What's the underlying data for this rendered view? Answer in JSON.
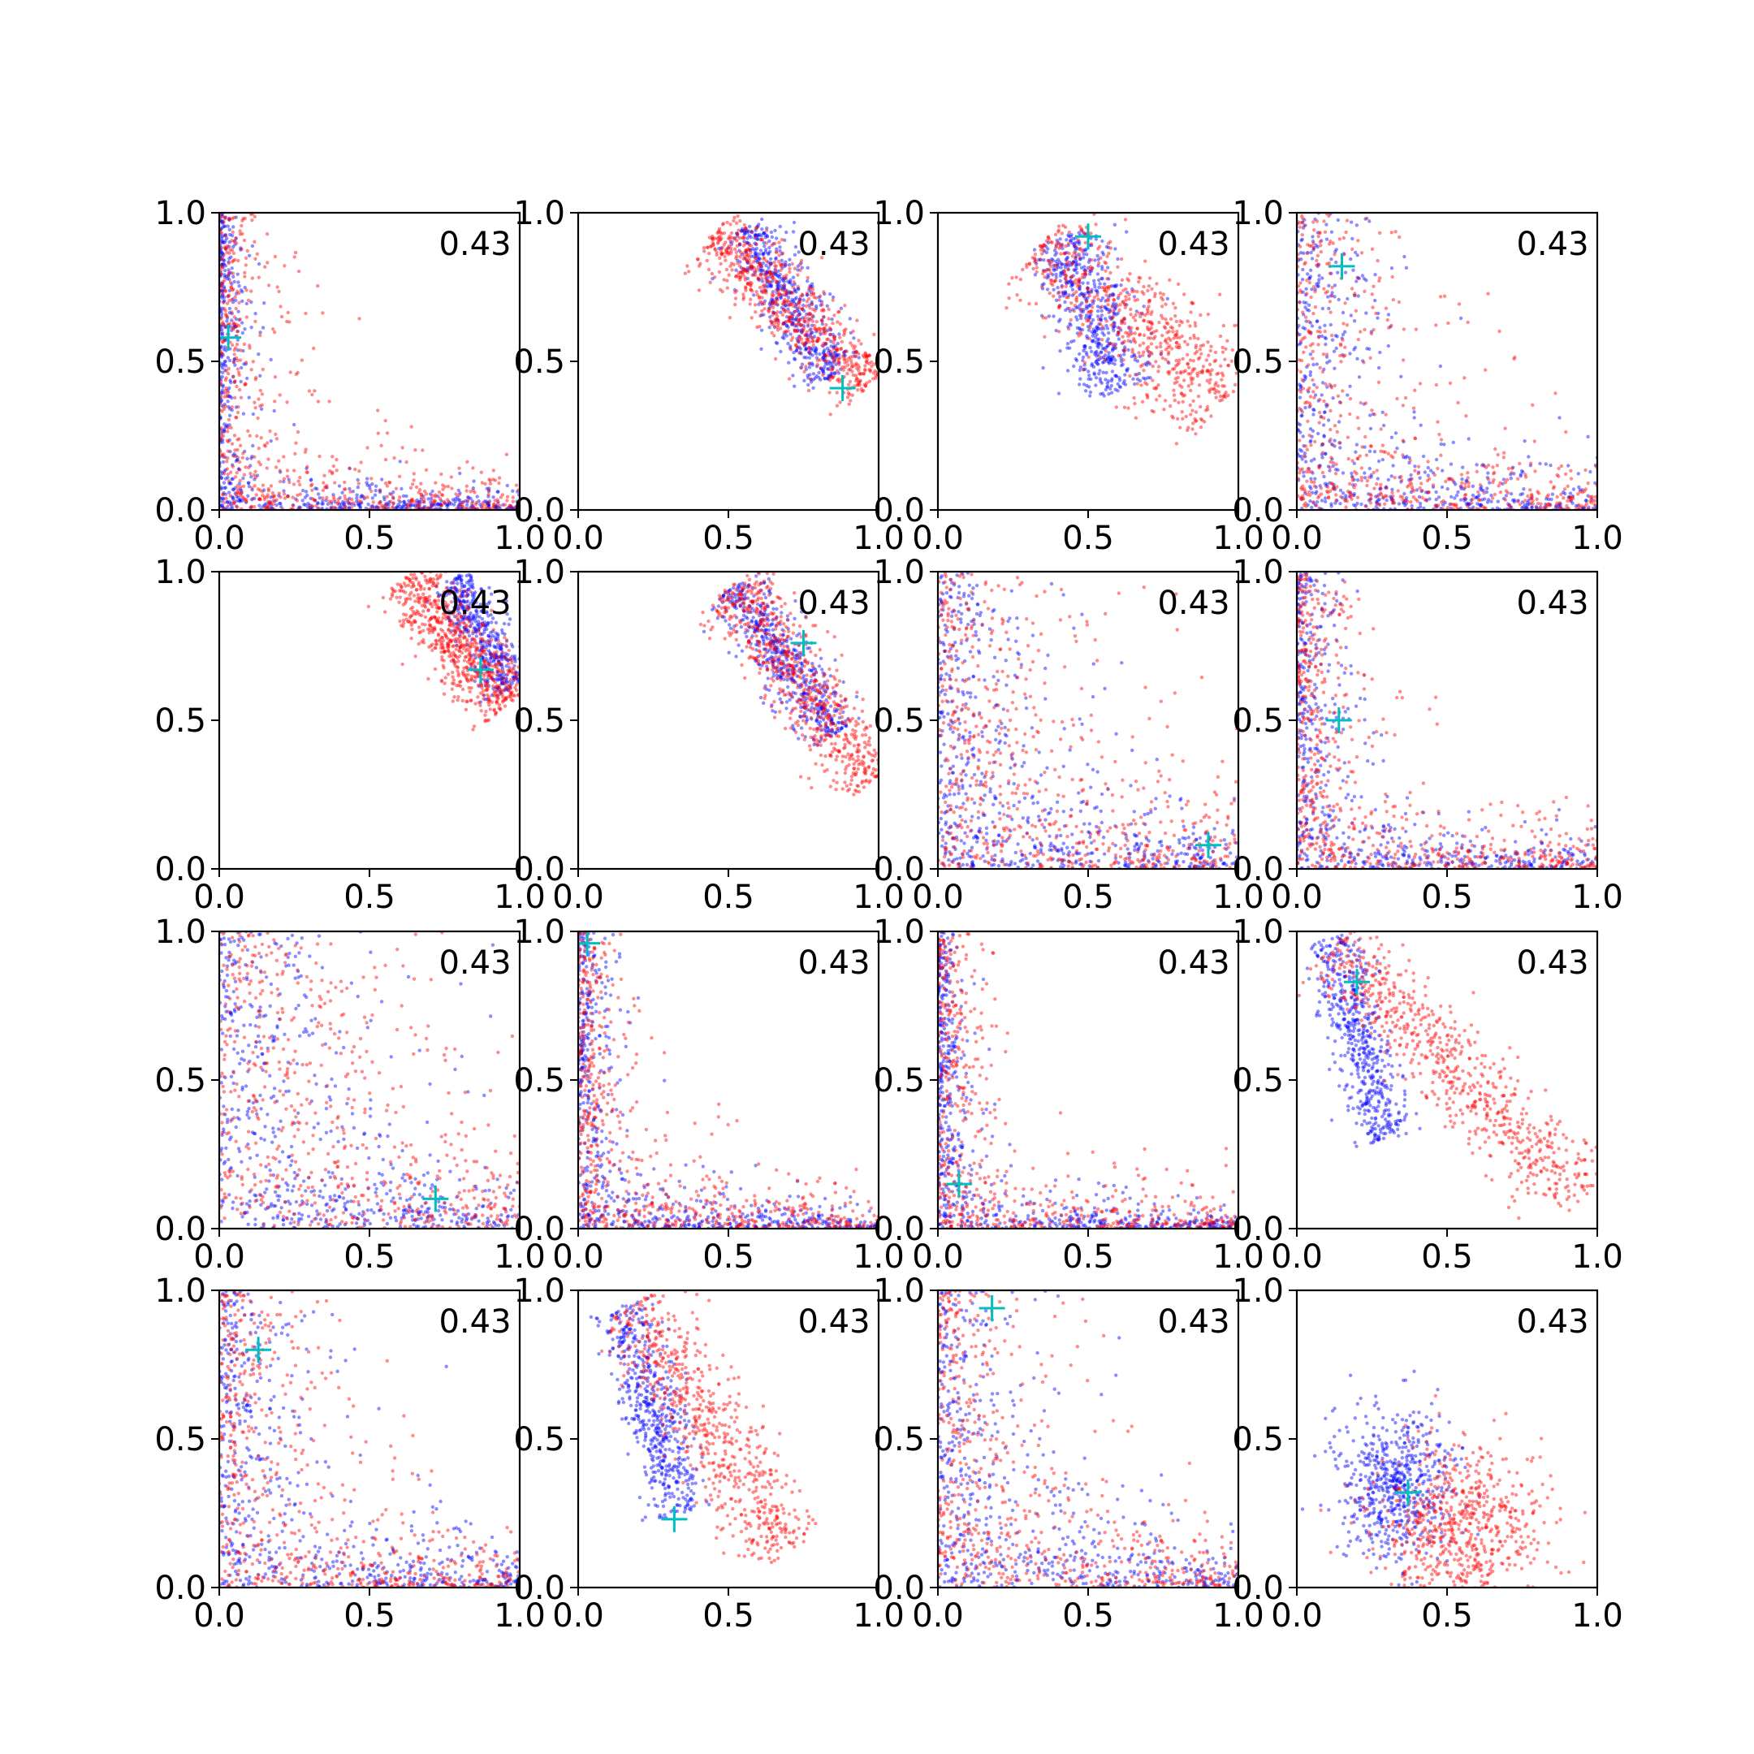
{
  "figure": {
    "rows": 4,
    "cols": 4,
    "colors": {
      "series_a": "#0000ff",
      "series_b": "#ff0000",
      "marker": "#00bfbf",
      "axes": "#000000"
    }
  },
  "chart_data": [
    {
      "type": "scatter",
      "annotation": "0.43",
      "xlim": [
        0,
        1
      ],
      "ylim": [
        0,
        1
      ],
      "xticks": [
        "0.0",
        "0.5",
        "1.0"
      ],
      "yticks": [
        "0.0",
        "0.5",
        "1.0"
      ],
      "marker": {
        "x": 0.03,
        "y": 0.58
      },
      "series": [
        {
          "color": "#0000ff",
          "shape": "L",
          "ax": 0.02,
          "ay": 0.02,
          "sx": 0.03,
          "sy": 0.03,
          "n": 700
        },
        {
          "color": "#ff0000",
          "shape": "L",
          "ax": 0.05,
          "ay": 0.04,
          "sx": 0.07,
          "sy": 0.06,
          "n": 650
        }
      ]
    },
    {
      "type": "scatter",
      "annotation": "0.43",
      "xlim": [
        0,
        1
      ],
      "ylim": [
        0,
        1
      ],
      "xticks": [
        "0.0",
        "0.5",
        "1.0"
      ],
      "yticks": [
        "0.0",
        "0.5",
        "1.0"
      ],
      "marker": {
        "x": 0.88,
        "y": 0.41
      },
      "series": [
        {
          "color": "#0000ff",
          "shape": "band",
          "x0": 0.55,
          "y0": 0.95,
          "x1": 0.85,
          "y1": 0.45,
          "w": 0.05,
          "n": 550
        },
        {
          "color": "#ff0000",
          "shape": "band",
          "x0": 0.45,
          "y0": 0.93,
          "x1": 0.97,
          "y1": 0.42,
          "w": 0.06,
          "n": 700
        }
      ]
    },
    {
      "type": "scatter",
      "annotation": "0.43",
      "xlim": [
        0,
        1
      ],
      "ylim": [
        0,
        1
      ],
      "xticks": [
        "0.0",
        "0.5",
        "1.0"
      ],
      "yticks": [
        "0.0",
        "0.5",
        "1.0"
      ],
      "marker": {
        "x": 0.5,
        "y": 0.92
      },
      "series": [
        {
          "color": "#0000ff",
          "shape": "band",
          "x0": 0.42,
          "y0": 0.92,
          "x1": 0.6,
          "y1": 0.4,
          "w": 0.07,
          "n": 550
        },
        {
          "color": "#ff0000",
          "shape": "band",
          "x0": 0.35,
          "y0": 0.9,
          "x1": 0.95,
          "y1": 0.35,
          "w": 0.09,
          "n": 650
        }
      ]
    },
    {
      "type": "scatter",
      "annotation": "0.43",
      "xlim": [
        0,
        1
      ],
      "ylim": [
        0,
        1
      ],
      "xticks": [
        "0.0",
        "0.5",
        "1.0"
      ],
      "yticks": [
        "0.0",
        "0.5",
        "1.0"
      ],
      "marker": {
        "x": 0.15,
        "y": 0.82
      },
      "series": [
        {
          "color": "#0000ff",
          "shape": "L",
          "ax": 0.1,
          "ay": 0.04,
          "sx": 0.05,
          "sy": 0.08,
          "n": 600
        },
        {
          "color": "#ff0000",
          "shape": "L",
          "ax": 0.12,
          "ay": 0.05,
          "sx": 0.07,
          "sy": 0.08,
          "n": 600
        }
      ]
    },
    {
      "type": "scatter",
      "annotation": "0.43",
      "xlim": [
        0,
        1
      ],
      "ylim": [
        0,
        1
      ],
      "xticks": [
        "0.0",
        "0.5",
        "1.0"
      ],
      "yticks": [
        "0.0",
        "0.5",
        "1.0"
      ],
      "marker": {
        "x": 0.87,
        "y": 0.67
      },
      "series": [
        {
          "color": "#0000ff",
          "shape": "band",
          "x0": 0.78,
          "y0": 0.98,
          "x1": 0.97,
          "y1": 0.6,
          "w": 0.04,
          "n": 450
        },
        {
          "color": "#ff0000",
          "shape": "band",
          "x0": 0.62,
          "y0": 0.98,
          "x1": 0.96,
          "y1": 0.55,
          "w": 0.06,
          "n": 700
        }
      ]
    },
    {
      "type": "scatter",
      "annotation": "0.43",
      "xlim": [
        0,
        1
      ],
      "ylim": [
        0,
        1
      ],
      "xticks": [
        "0.0",
        "0.5",
        "1.0"
      ],
      "yticks": [
        "0.0",
        "0.5",
        "1.0"
      ],
      "marker": {
        "x": 0.75,
        "y": 0.76
      },
      "series": [
        {
          "color": "#0000ff",
          "shape": "band",
          "x0": 0.52,
          "y0": 0.95,
          "x1": 0.85,
          "y1": 0.45,
          "w": 0.05,
          "n": 550
        },
        {
          "color": "#ff0000",
          "shape": "band",
          "x0": 0.5,
          "y0": 0.95,
          "x1": 0.99,
          "y1": 0.3,
          "w": 0.06,
          "n": 700
        }
      ]
    },
    {
      "type": "scatter",
      "annotation": "0.43",
      "xlim": [
        0,
        1
      ],
      "ylim": [
        0,
        1
      ],
      "xticks": [
        "0.0",
        "0.5",
        "1.0"
      ],
      "yticks": [
        "0.0",
        "0.5",
        "1.0"
      ],
      "marker": {
        "x": 0.9,
        "y": 0.08
      },
      "series": [
        {
          "color": "#0000ff",
          "shape": "L",
          "ax": 0.1,
          "ay": 0.05,
          "sx": 0.09,
          "sy": 0.08,
          "n": 650
        },
        {
          "color": "#ff0000",
          "shape": "L",
          "ax": 0.15,
          "ay": 0.08,
          "sx": 0.1,
          "sy": 0.12,
          "n": 650
        }
      ]
    },
    {
      "type": "scatter",
      "annotation": "0.43",
      "xlim": [
        0,
        1
      ],
      "ylim": [
        0,
        1
      ],
      "xticks": [
        "0.0",
        "0.5",
        "1.0"
      ],
      "yticks": [
        "0.0",
        "0.5",
        "1.0"
      ],
      "marker": {
        "x": 0.14,
        "y": 0.5
      },
      "series": [
        {
          "color": "#0000ff",
          "shape": "L",
          "ax": 0.04,
          "ay": 0.03,
          "sx": 0.05,
          "sy": 0.05,
          "n": 600
        },
        {
          "color": "#ff0000",
          "shape": "L",
          "ax": 0.06,
          "ay": 0.05,
          "sx": 0.07,
          "sy": 0.07,
          "n": 650
        }
      ]
    },
    {
      "type": "scatter",
      "annotation": "0.43",
      "xlim": [
        0,
        1
      ],
      "ylim": [
        0,
        1
      ],
      "xticks": [
        "0.0",
        "0.5",
        "1.0"
      ],
      "yticks": [
        "0.0",
        "0.5",
        "1.0"
      ],
      "marker": {
        "x": 0.72,
        "y": 0.1
      },
      "series": [
        {
          "color": "#0000ff",
          "shape": "L",
          "ax": 0.15,
          "ay": 0.05,
          "sx": 0.14,
          "sy": 0.1,
          "n": 600
        },
        {
          "color": "#ff0000",
          "shape": "L",
          "ax": 0.2,
          "ay": 0.1,
          "sx": 0.18,
          "sy": 0.18,
          "n": 600
        }
      ]
    },
    {
      "type": "scatter",
      "annotation": "0.43",
      "xlim": [
        0,
        1
      ],
      "ylim": [
        0,
        1
      ],
      "xticks": [
        "0.0",
        "0.5",
        "1.0"
      ],
      "yticks": [
        "0.0",
        "0.5",
        "1.0"
      ],
      "marker": {
        "x": 0.03,
        "y": 0.96
      },
      "series": [
        {
          "color": "#0000ff",
          "shape": "L",
          "ax": 0.03,
          "ay": 0.02,
          "sx": 0.04,
          "sy": 0.04,
          "n": 650
        },
        {
          "color": "#ff0000",
          "shape": "L",
          "ax": 0.04,
          "ay": 0.04,
          "sx": 0.06,
          "sy": 0.06,
          "n": 650
        }
      ]
    },
    {
      "type": "scatter",
      "annotation": "0.43",
      "xlim": [
        0,
        1
      ],
      "ylim": [
        0,
        1
      ],
      "xticks": [
        "0.0",
        "0.5",
        "1.0"
      ],
      "yticks": [
        "0.0",
        "0.5",
        "1.0"
      ],
      "marker": {
        "x": 0.07,
        "y": 0.15
      },
      "series": [
        {
          "color": "#0000ff",
          "shape": "L",
          "ax": 0.02,
          "ay": 0.02,
          "sx": 0.04,
          "sy": 0.04,
          "n": 650
        },
        {
          "color": "#ff0000",
          "shape": "L",
          "ax": 0.04,
          "ay": 0.04,
          "sx": 0.06,
          "sy": 0.06,
          "n": 600
        }
      ]
    },
    {
      "type": "scatter",
      "annotation": "0.43",
      "xlim": [
        0,
        1
      ],
      "ylim": [
        0,
        1
      ],
      "xticks": [
        "0.0",
        "0.5",
        "1.0"
      ],
      "yticks": [
        "0.0",
        "0.5",
        "1.0"
      ],
      "marker": {
        "x": 0.2,
        "y": 0.83
      },
      "series": [
        {
          "color": "#0000ff",
          "shape": "band",
          "x0": 0.12,
          "y0": 0.98,
          "x1": 0.3,
          "y1": 0.3,
          "w": 0.05,
          "n": 550
        },
        {
          "color": "#ff0000",
          "shape": "band",
          "x0": 0.12,
          "y0": 0.95,
          "x1": 0.95,
          "y1": 0.1,
          "w": 0.07,
          "n": 700
        }
      ]
    },
    {
      "type": "scatter",
      "annotation": "0.43",
      "xlim": [
        0,
        1
      ],
      "ylim": [
        0,
        1
      ],
      "xticks": [
        "0.0",
        "0.5",
        "1.0"
      ],
      "yticks": [
        "0.0",
        "0.5",
        "1.0"
      ],
      "marker": {
        "x": 0.13,
        "y": 0.8
      },
      "series": [
        {
          "color": "#0000ff",
          "shape": "L",
          "ax": 0.1,
          "ay": 0.04,
          "sx": 0.06,
          "sy": 0.08,
          "n": 600
        },
        {
          "color": "#ff0000",
          "shape": "L",
          "ax": 0.1,
          "ay": 0.05,
          "sx": 0.08,
          "sy": 0.08,
          "n": 600
        }
      ]
    },
    {
      "type": "scatter",
      "annotation": "0.43",
      "xlim": [
        0,
        1
      ],
      "ylim": [
        0,
        1
      ],
      "xticks": [
        "0.0",
        "0.5",
        "1.0"
      ],
      "yticks": [
        "0.0",
        "0.5",
        "1.0"
      ],
      "marker": {
        "x": 0.32,
        "y": 0.23
      },
      "series": [
        {
          "color": "#0000ff",
          "shape": "band",
          "x0": 0.15,
          "y0": 0.95,
          "x1": 0.35,
          "y1": 0.25,
          "w": 0.05,
          "n": 550
        },
        {
          "color": "#ff0000",
          "shape": "band",
          "x0": 0.18,
          "y0": 0.95,
          "x1": 0.7,
          "y1": 0.12,
          "w": 0.07,
          "n": 650
        }
      ]
    },
    {
      "type": "scatter",
      "annotation": "0.43",
      "xlim": [
        0,
        1
      ],
      "ylim": [
        0,
        1
      ],
      "xticks": [
        "0.0",
        "0.5",
        "1.0"
      ],
      "yticks": [
        "0.0",
        "0.5",
        "1.0"
      ],
      "marker": {
        "x": 0.18,
        "y": 0.94
      },
      "series": [
        {
          "color": "#0000ff",
          "shape": "L",
          "ax": 0.08,
          "ay": 0.05,
          "sx": 0.08,
          "sy": 0.09,
          "n": 600
        },
        {
          "color": "#ff0000",
          "shape": "L",
          "ax": 0.1,
          "ay": 0.06,
          "sx": 0.1,
          "sy": 0.1,
          "n": 600
        }
      ]
    },
    {
      "type": "scatter",
      "annotation": "0.43",
      "xlim": [
        0,
        1
      ],
      "ylim": [
        0,
        1
      ],
      "xticks": [
        "0.0",
        "0.5",
        "1.0"
      ],
      "yticks": [
        "0.0",
        "0.5",
        "1.0"
      ],
      "marker": {
        "x": 0.37,
        "y": 0.32
      },
      "series": [
        {
          "color": "#0000ff",
          "shape": "blob",
          "cx": 0.33,
          "cy": 0.35,
          "sx": 0.1,
          "sy": 0.12,
          "n": 600
        },
        {
          "color": "#ff0000",
          "shape": "blob",
          "cx": 0.55,
          "cy": 0.2,
          "sx": 0.14,
          "sy": 0.14,
          "n": 650
        }
      ]
    }
  ]
}
